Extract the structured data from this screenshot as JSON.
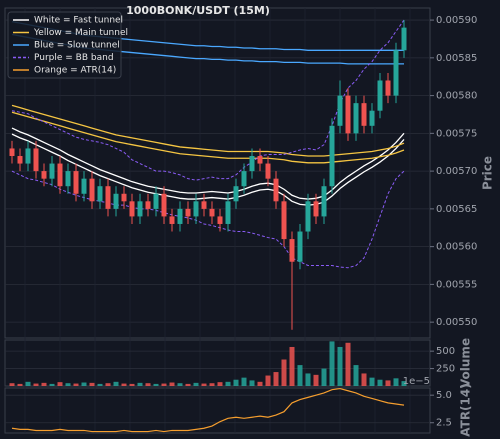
{
  "chart_data": [
    {
      "type": "candlestick",
      "title": "1000BONK/USDT (15M)",
      "y_label": "Price",
      "legend": "upper left",
      "grid": true,
      "up_color": "#26a69a",
      "down_color": "#ef5350",
      "ylim": [
        0.005479,
        0.005916
      ],
      "yticks": [
        {
          "value": 0.0055,
          "label": "0.00550"
        },
        {
          "value": 0.00555,
          "label": "0.00555"
        },
        {
          "value": 0.0056,
          "label": "0.00560"
        },
        {
          "value": 0.00565,
          "label": "0.00565"
        },
        {
          "value": 0.0057,
          "label": "0.00570"
        },
        {
          "value": 0.00575,
          "label": "0.00575"
        },
        {
          "value": 0.0058,
          "label": "0.00580"
        },
        {
          "value": 0.00585,
          "label": "0.00585"
        },
        {
          "value": 0.0059,
          "label": "0.00590"
        }
      ],
      "open": [
        0.00573,
        0.00572,
        0.00571,
        0.00573,
        0.0057,
        0.00569,
        0.00571,
        0.00568,
        0.0057,
        0.00567,
        0.00569,
        0.00566,
        0.00568,
        0.00565,
        0.00567,
        0.00566,
        0.00564,
        0.00566,
        0.00565,
        0.00567,
        0.00564,
        0.00563,
        0.00565,
        0.00564,
        0.00566,
        0.00565,
        0.00564,
        0.00563,
        0.00566,
        0.00568,
        0.0057,
        0.00572,
        0.00571,
        0.00569,
        0.00566,
        0.00561,
        0.00558,
        0.00562,
        0.00566,
        0.00564,
        0.00568,
        0.00576,
        0.0058,
        0.00575,
        0.00579,
        0.00576,
        0.00578,
        0.00582,
        0.0058,
        0.00586
      ],
      "high": [
        0.00574,
        0.00573,
        0.00574,
        0.00574,
        0.00571,
        0.00572,
        0.00572,
        0.00571,
        0.00571,
        0.0057,
        0.0057,
        0.00569,
        0.00569,
        0.00568,
        0.00568,
        0.00567,
        0.00567,
        0.00567,
        0.00568,
        0.00568,
        0.00565,
        0.00566,
        0.00566,
        0.00567,
        0.00567,
        0.00566,
        0.00565,
        0.00567,
        0.00569,
        0.00571,
        0.00573,
        0.00573,
        0.00572,
        0.0057,
        0.00567,
        0.00562,
        0.00563,
        0.00567,
        0.00567,
        0.00569,
        0.00577,
        0.00582,
        0.00581,
        0.0058,
        0.0058,
        0.00579,
        0.00583,
        0.00583,
        0.00587,
        0.0059
      ],
      "low": [
        0.00571,
        0.0057,
        0.0057,
        0.00569,
        0.00568,
        0.00568,
        0.00567,
        0.00567,
        0.00566,
        0.00566,
        0.00565,
        0.00565,
        0.00564,
        0.00564,
        0.00565,
        0.00563,
        0.00563,
        0.00564,
        0.00564,
        0.00563,
        0.00562,
        0.00562,
        0.00563,
        0.00563,
        0.00564,
        0.00563,
        0.00562,
        0.00562,
        0.00565,
        0.00567,
        0.00569,
        0.0057,
        0.00568,
        0.00565,
        0.0056,
        0.00549,
        0.00557,
        0.00561,
        0.00563,
        0.00563,
        0.00567,
        0.00575,
        0.00574,
        0.00574,
        0.00575,
        0.00575,
        0.00577,
        0.00579,
        0.00579,
        0.00585
      ],
      "close": [
        0.00572,
        0.00571,
        0.00573,
        0.0057,
        0.00569,
        0.00571,
        0.00568,
        0.0057,
        0.00567,
        0.00569,
        0.00566,
        0.00568,
        0.00565,
        0.00567,
        0.00566,
        0.00564,
        0.00566,
        0.00565,
        0.00567,
        0.00564,
        0.00563,
        0.00565,
        0.00564,
        0.00566,
        0.00565,
        0.00564,
        0.00563,
        0.00566,
        0.00568,
        0.0057,
        0.00572,
        0.00571,
        0.00569,
        0.00566,
        0.00561,
        0.00558,
        0.00562,
        0.00566,
        0.00564,
        0.00568,
        0.00576,
        0.0058,
        0.00575,
        0.00579,
        0.00576,
        0.00578,
        0.00582,
        0.0058,
        0.00586,
        0.00589
      ],
      "series": [
        {
          "name": "White = Fast tunnel",
          "color": "#ffffff",
          "dashed": false,
          "lines": [
            [
              0.005757,
              0.005752,
              0.005748,
              0.005743,
              0.005738,
              0.005733,
              0.005728,
              0.005722,
              0.005717,
              0.005712,
              0.005707,
              0.005702,
              0.005698,
              0.005694,
              0.00569,
              0.005686,
              0.005683,
              0.00568,
              0.005678,
              0.005676,
              0.005674,
              0.005672,
              0.005671,
              0.005671,
              0.005672,
              0.005673,
              0.005672,
              0.005671,
              0.005673,
              0.005676,
              0.00568,
              0.005683,
              0.005684,
              0.005682,
              0.005676,
              0.005668,
              0.005664,
              0.005663,
              0.005664,
              0.005667,
              0.005675,
              0.005685,
              0.005693,
              0.0057,
              0.005707,
              0.005713,
              0.00572,
              0.005728,
              0.005738,
              0.00575
            ],
            [
              0.005749,
              0.005744,
              0.00574,
              0.005735,
              0.00573,
              0.005725,
              0.00572,
              0.005714,
              0.005709,
              0.005704,
              0.005699,
              0.005694,
              0.00569,
              0.005686,
              0.005682,
              0.005678,
              0.005675,
              0.005672,
              0.00567,
              0.005668,
              0.005666,
              0.005664,
              0.005663,
              0.005663,
              0.005664,
              0.005665,
              0.005664,
              0.005663,
              0.005665,
              0.005668,
              0.005672,
              0.005675,
              0.005676,
              0.005674,
              0.005668,
              0.00566,
              0.005656,
              0.005655,
              0.005656,
              0.005659,
              0.005667,
              0.005677,
              0.005685,
              0.005692,
              0.005699,
              0.005705,
              0.005712,
              0.00572,
              0.00573,
              0.005742
            ]
          ]
        },
        {
          "name": "Yellow = Main tunnel",
          "color": "#f5c542",
          "dashed": false,
          "lines": [
            [
              0.005787,
              0.005784,
              0.005781,
              0.005778,
              0.005775,
              0.005772,
              0.005769,
              0.005766,
              0.005763,
              0.00576,
              0.005757,
              0.005754,
              0.005751,
              0.005748,
              0.005746,
              0.005744,
              0.005742,
              0.00574,
              0.005738,
              0.005736,
              0.005734,
              0.005732,
              0.005731,
              0.00573,
              0.005729,
              0.005728,
              0.005727,
              0.005726,
              0.005726,
              0.005726,
              0.005726,
              0.005726,
              0.005726,
              0.005725,
              0.005724,
              0.005722,
              0.005721,
              0.00572,
              0.00572,
              0.00572,
              0.005721,
              0.005722,
              0.005723,
              0.005724,
              0.005725,
              0.005726,
              0.005728,
              0.00573,
              0.005733,
              0.005737
            ],
            [
              0.005778,
              0.005775,
              0.005772,
              0.005769,
              0.005766,
              0.005763,
              0.00576,
              0.005757,
              0.005754,
              0.005751,
              0.005748,
              0.005745,
              0.005742,
              0.005739,
              0.005737,
              0.005735,
              0.005733,
              0.005731,
              0.005729,
              0.005727,
              0.005725,
              0.005723,
              0.005722,
              0.005721,
              0.00572,
              0.005719,
              0.005718,
              0.005717,
              0.005717,
              0.005717,
              0.005717,
              0.005717,
              0.005717,
              0.005716,
              0.005715,
              0.005713,
              0.005712,
              0.005711,
              0.005711,
              0.005711,
              0.005712,
              0.005713,
              0.005714,
              0.005715,
              0.005716,
              0.005717,
              0.005719,
              0.005721,
              0.005724,
              0.005728
            ]
          ]
        },
        {
          "name": "Blue = Slow tunnel",
          "color": "#4aa8ff",
          "dashed": false,
          "lines": [
            [
              0.005898,
              0.005896,
              0.005894,
              0.005892,
              0.00589,
              0.005888,
              0.005886,
              0.005884,
              0.005882,
              0.00588,
              0.005879,
              0.005878,
              0.005877,
              0.005876,
              0.005875,
              0.005874,
              0.005873,
              0.005872,
              0.005871,
              0.00587,
              0.005869,
              0.005868,
              0.005867,
              0.005866,
              0.005866,
              0.005865,
              0.005865,
              0.005864,
              0.005864,
              0.005863,
              0.005863,
              0.005862,
              0.005862,
              0.005862,
              0.005861,
              0.005861,
              0.005861,
              0.00586,
              0.00586,
              0.00586,
              0.00586,
              0.00586,
              0.00586,
              0.00586,
              0.00586,
              0.00586,
              0.00586,
              0.00586,
              0.00586,
              0.00586
            ],
            [
              0.005881,
              0.005879,
              0.005877,
              0.005875,
              0.005873,
              0.005871,
              0.005869,
              0.005867,
              0.005865,
              0.005863,
              0.005862,
              0.005861,
              0.00586,
              0.005859,
              0.005858,
              0.005857,
              0.005856,
              0.005855,
              0.005854,
              0.005853,
              0.005852,
              0.005851,
              0.00585,
              0.005849,
              0.005849,
              0.005848,
              0.005848,
              0.005847,
              0.005847,
              0.005846,
              0.005846,
              0.005845,
              0.005845,
              0.005845,
              0.005844,
              0.005844,
              0.005844,
              0.005843,
              0.005843,
              0.005843,
              0.005843,
              0.005843,
              0.005842,
              0.005842,
              0.005842,
              0.005842,
              0.005842,
              0.005842,
              0.005842,
              0.005842
            ]
          ]
        },
        {
          "name": "Purple = BB band",
          "color": "#8a5cf6",
          "dashed": true,
          "lines": [
            [
              0.00578,
              0.005778,
              0.005776,
              0.00577,
              0.005765,
              0.00576,
              0.005755,
              0.00575,
              0.005745,
              0.005742,
              0.00574,
              0.005738,
              0.005735,
              0.00573,
              0.005725,
              0.005715,
              0.00571,
              0.005705,
              0.0057,
              0.0057,
              0.005698,
              0.005695,
              0.00569,
              0.005688,
              0.00569,
              0.005692,
              0.00569,
              0.00569,
              0.005695,
              0.005705,
              0.005712,
              0.00572,
              0.005722,
              0.005722,
              0.005722,
              0.005725,
              0.005728,
              0.00573,
              0.005728,
              0.005735,
              0.00576,
              0.00579,
              0.00581,
              0.00582,
              0.005835,
              0.005845,
              0.00586,
              0.00587,
              0.005885,
              0.0059
            ],
            [
              0.0057,
              0.005695,
              0.00569,
              0.005688,
              0.005685,
              0.005682,
              0.005676,
              0.005672,
              0.005668,
              0.005665,
              0.005662,
              0.00566,
              0.005658,
              0.005655,
              0.005655,
              0.005652,
              0.00565,
              0.00565,
              0.005648,
              0.005645,
              0.005642,
              0.00564,
              0.005638,
              0.005635,
              0.00563,
              0.005628,
              0.005625,
              0.005622,
              0.00562,
              0.00562,
              0.005618,
              0.005615,
              0.005612,
              0.00561,
              0.0056,
              0.005585,
              0.00558,
              0.005575,
              0.005575,
              0.005575,
              0.005575,
              0.005573,
              0.005572,
              0.005575,
              0.005585,
              0.00561,
              0.00564,
              0.00567,
              0.00569,
              0.0057
            ]
          ]
        },
        {
          "name": "Orange = ATR(14)",
          "color": "#f59e2e",
          "dashed": false,
          "lines": []
        }
      ]
    },
    {
      "type": "bar",
      "y_label": "Volume",
      "ylim": [
        0,
        660
      ],
      "yticks": [
        250,
        500
      ],
      "values": [
        40,
        30,
        60,
        35,
        45,
        30,
        55,
        40,
        35,
        50,
        45,
        30,
        40,
        60,
        35,
        30,
        45,
        40,
        30,
        35,
        50,
        40,
        30,
        45,
        35,
        40,
        55,
        60,
        90,
        120,
        80,
        60,
        150,
        200,
        380,
        560,
        300,
        180,
        160,
        250,
        640,
        560,
        620,
        300,
        180,
        120,
        90,
        80,
        110,
        70
      ]
    },
    {
      "type": "line",
      "y_label": "ATR(14)",
      "offset_text": "1e−5",
      "color": "#f59e2e",
      "ylim": [
        1.57,
        5.65
      ],
      "yticks": [
        2.5,
        {
          "value": 5,
          "label": "5.0"
        }
      ],
      "values": [
        2.0,
        1.9,
        1.9,
        1.8,
        1.8,
        1.8,
        1.9,
        1.8,
        1.8,
        1.8,
        1.7,
        1.7,
        1.7,
        1.7,
        1.8,
        1.7,
        1.7,
        1.7,
        1.8,
        1.7,
        1.8,
        1.8,
        1.8,
        1.9,
        2.0,
        2.2,
        2.6,
        2.9,
        3.0,
        2.9,
        3.0,
        3.1,
        3.0,
        3.2,
        3.5,
        4.3,
        4.6,
        4.8,
        5.0,
        5.2,
        5.5,
        5.6,
        5.4,
        5.2,
        4.9,
        4.7,
        4.5,
        4.3,
        4.2,
        4.1
      ]
    }
  ]
}
